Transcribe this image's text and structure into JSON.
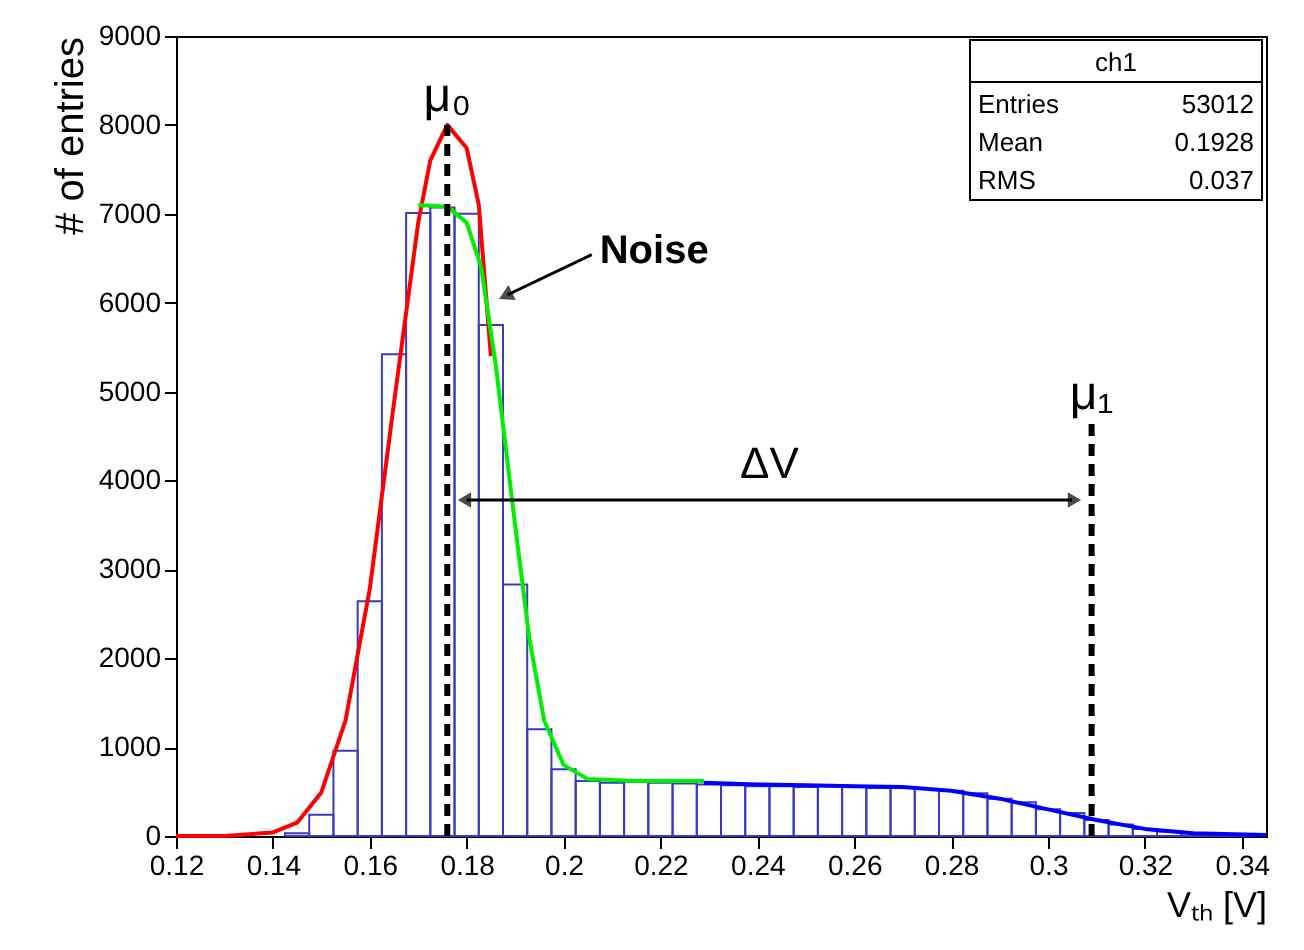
{
  "chart_data": {
    "type": "histogram",
    "xlabel": "Vₜₕ [V]",
    "ylabel": "# of entries",
    "bins": [
      0.1425,
      0.1475,
      0.1525,
      0.1575,
      0.1625,
      0.1675,
      0.1725,
      0.1775,
      0.1825,
      0.1875,
      0.1925,
      0.1975,
      0.2025,
      0.2075,
      0.2125,
      0.2175,
      0.2225,
      0.2275,
      0.2325,
      0.2375,
      0.2425,
      0.2475,
      0.2525,
      0.2575,
      0.2625,
      0.2675,
      0.2725,
      0.2775,
      0.2825,
      0.2875,
      0.2925,
      0.2975,
      0.3025,
      0.3075,
      0.3125,
      0.3175,
      0.3225,
      0.3275,
      0.3325,
      0.3375,
      0.3425
    ],
    "values": [
      30,
      240,
      960,
      2640,
      5420,
      7010,
      7070,
      7000,
      5750,
      2830,
      1200,
      750,
      620,
      600,
      610,
      600,
      590,
      580,
      570,
      560,
      560,
      550,
      560,
      550,
      540,
      540,
      530,
      510,
      480,
      420,
      380,
      300,
      260,
      180,
      130,
      80,
      50,
      30,
      20,
      10
    ],
    "color": "#3a3ac4",
    "series": [
      {
        "type": "line",
        "color": "#ff0000",
        "x": [
          0.12,
          0.13,
          0.14,
          0.145,
          0.15,
          0.155,
          0.16,
          0.165,
          0.17,
          0.1725,
          0.176,
          0.18,
          0.1825,
          0.185
        ],
        "values": [
          0,
          0,
          40,
          150,
          490,
          1300,
          2780,
          4870,
          6900,
          7600,
          8000,
          7740,
          7100,
          5400
        ]
      },
      {
        "type": "line",
        "color": "#00ee00",
        "x": [
          0.17,
          0.176,
          0.18,
          0.183,
          0.186,
          0.19,
          0.193,
          0.196,
          0.2,
          0.205,
          0.215,
          0.229
        ],
        "values": [
          7100,
          7080,
          6900,
          6400,
          5300,
          3500,
          2200,
          1300,
          800,
          640,
          620,
          620
        ]
      },
      {
        "type": "line",
        "color": "#0000ff",
        "x": [
          0.229,
          0.24,
          0.25,
          0.26,
          0.27,
          0.28,
          0.29,
          0.3,
          0.31,
          0.32,
          0.33,
          0.345
        ],
        "values": [
          600,
          580,
          570,
          560,
          550,
          510,
          420,
          300,
          180,
          80,
          30,
          10
        ]
      }
    ],
    "xlim": [
      0.12,
      0.345
    ],
    "ylim": [
      0,
      9000
    ],
    "xticks": [
      0.12,
      0.14,
      0.16,
      0.18,
      0.2,
      0.22,
      0.24,
      0.26,
      0.28,
      0.3,
      0.32,
      0.34
    ],
    "yticks": [
      0,
      1000,
      2000,
      3000,
      4000,
      5000,
      6000,
      7000,
      8000,
      9000
    ],
    "ref_lines": [
      {
        "axis": "x",
        "value": 0.176,
        "color": "#000000",
        "line_style": "dashed"
      },
      {
        "axis": "x",
        "value": 0.309,
        "color": "#000000",
        "line_style": "dashed"
      }
    ],
    "annotations": [
      {
        "text": "μ₀",
        "x": 0.176,
        "y": 8000
      },
      {
        "text": "μ₁",
        "x": 0.309,
        "y": 4650
      },
      {
        "text": "Noise",
        "x": 0.186,
        "y": 6000
      },
      "ΔV",
      "ch1",
      "Entries",
      "53012",
      "Mean",
      "0.1928",
      "RMS",
      "0.037"
    ],
    "grid": false
  }
}
